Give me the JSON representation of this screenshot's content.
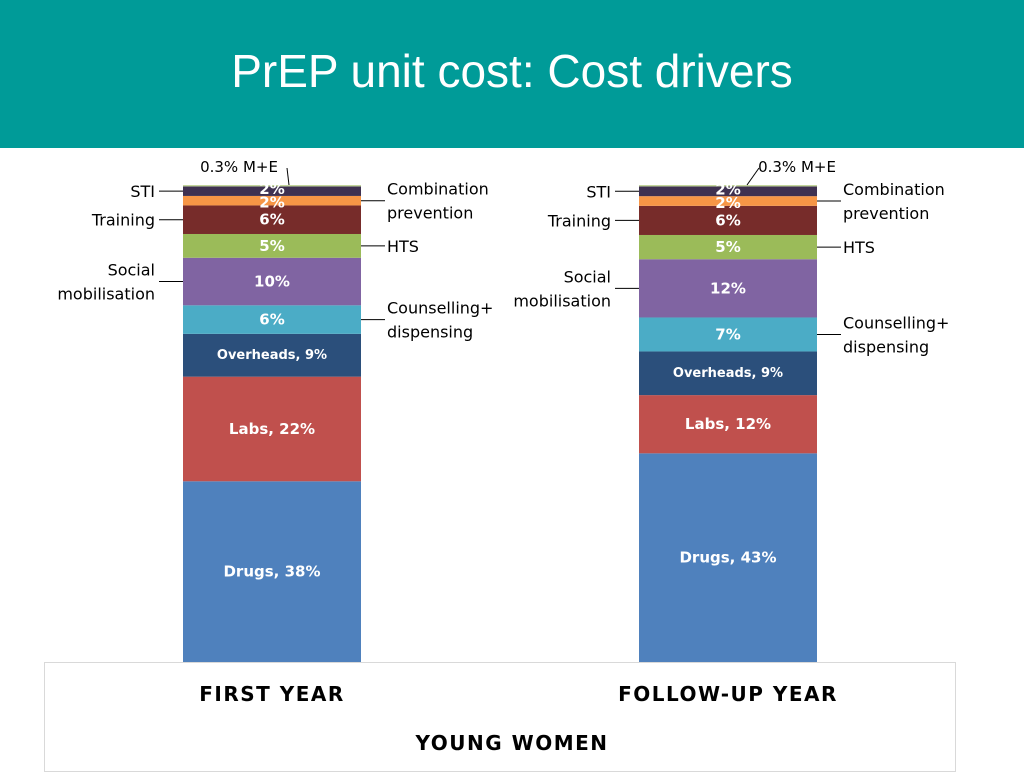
{
  "header": {
    "title": "PrEP unit cost: Cost drivers"
  },
  "chart_data": {
    "type": "bar",
    "stacked": true,
    "categories": [
      "FIRST YEAR",
      "FOLLOW-UP YEAR"
    ],
    "xlabel": "YOUNG WOMEN",
    "ylabel": "",
    "ylim": [
      0,
      100
    ],
    "grid": false,
    "series": [
      {
        "name": "Drugs",
        "color": "#4f81bd",
        "values": [
          38,
          43
        ],
        "labels": [
          "Drugs, 38%",
          "Drugs, 43%"
        ]
      },
      {
        "name": "Labs",
        "color": "#c0504d",
        "values": [
          22,
          12
        ],
        "labels": [
          "Labs, 22%",
          "Labs, 12%"
        ]
      },
      {
        "name": "Overheads",
        "color": "#2b4f7b",
        "values": [
          9,
          9
        ],
        "labels": [
          "Overheads, 9%",
          "Overheads, 9%"
        ]
      },
      {
        "name": "Counselling+ dispensing",
        "color": "#4bacc6",
        "values": [
          6,
          7
        ],
        "labels": [
          "6%",
          "7%"
        ]
      },
      {
        "name": "Social mobilisation",
        "color": "#8064a2",
        "values": [
          10,
          12
        ],
        "labels": [
          "10%",
          "12%"
        ]
      },
      {
        "name": "HTS",
        "color": "#9bbb59",
        "values": [
          5,
          5
        ],
        "labels": [
          "5%",
          "5%"
        ]
      },
      {
        "name": "Training",
        "color": "#772c2a",
        "values": [
          6,
          6
        ],
        "labels": [
          "6%",
          "6%"
        ]
      },
      {
        "name": "Combination prevention",
        "color": "#f79646",
        "values": [
          2,
          2
        ],
        "labels": [
          "2%",
          "2%"
        ]
      },
      {
        "name": "STI",
        "color": "#3f3151",
        "values": [
          2,
          2
        ],
        "labels": [
          "2%",
          "2%"
        ]
      },
      {
        "name": "M+E",
        "color": "#c3d69b",
        "values": [
          0.3,
          0.3
        ],
        "labels": [
          "",
          ""
        ]
      }
    ],
    "annotations": [
      {
        "category": "FIRST YEAR",
        "series": "M+E",
        "text": [
          "0.3% M+E"
        ]
      },
      {
        "category": "FIRST YEAR",
        "series": "STI",
        "text": [
          "STI"
        ]
      },
      {
        "category": "FIRST YEAR",
        "series": "Training",
        "text": [
          "Training"
        ]
      },
      {
        "category": "FIRST YEAR",
        "series": "Social mobilisation",
        "text": [
          "Social",
          "mobilisation"
        ]
      },
      {
        "category": "FIRST YEAR",
        "series": "Combination prevention",
        "text": [
          "Combination",
          "prevention"
        ]
      },
      {
        "category": "FIRST YEAR",
        "series": "HTS",
        "text": [
          "HTS"
        ]
      },
      {
        "category": "FIRST YEAR",
        "series": "Counselling+ dispensing",
        "text": [
          "Counselling+",
          "dispensing"
        ]
      },
      {
        "category": "FOLLOW-UP YEAR",
        "series": "M+E",
        "text": [
          "0.3% M+E"
        ]
      },
      {
        "category": "FOLLOW-UP YEAR",
        "series": "STI",
        "text": [
          "STI"
        ]
      },
      {
        "category": "FOLLOW-UP YEAR",
        "series": "Training",
        "text": [
          "Training"
        ]
      },
      {
        "category": "FOLLOW-UP YEAR",
        "series": "Social mobilisation",
        "text": [
          "Social",
          "mobilisation"
        ]
      },
      {
        "category": "FOLLOW-UP YEAR",
        "series": "Combination prevention",
        "text": [
          "Combination",
          "prevention"
        ]
      },
      {
        "category": "FOLLOW-UP YEAR",
        "series": "HTS",
        "text": [
          "HTS"
        ]
      },
      {
        "category": "FOLLOW-UP YEAR",
        "series": "Counselling+ dispensing",
        "text": [
          "Counselling+",
          "dispensing"
        ]
      }
    ]
  }
}
